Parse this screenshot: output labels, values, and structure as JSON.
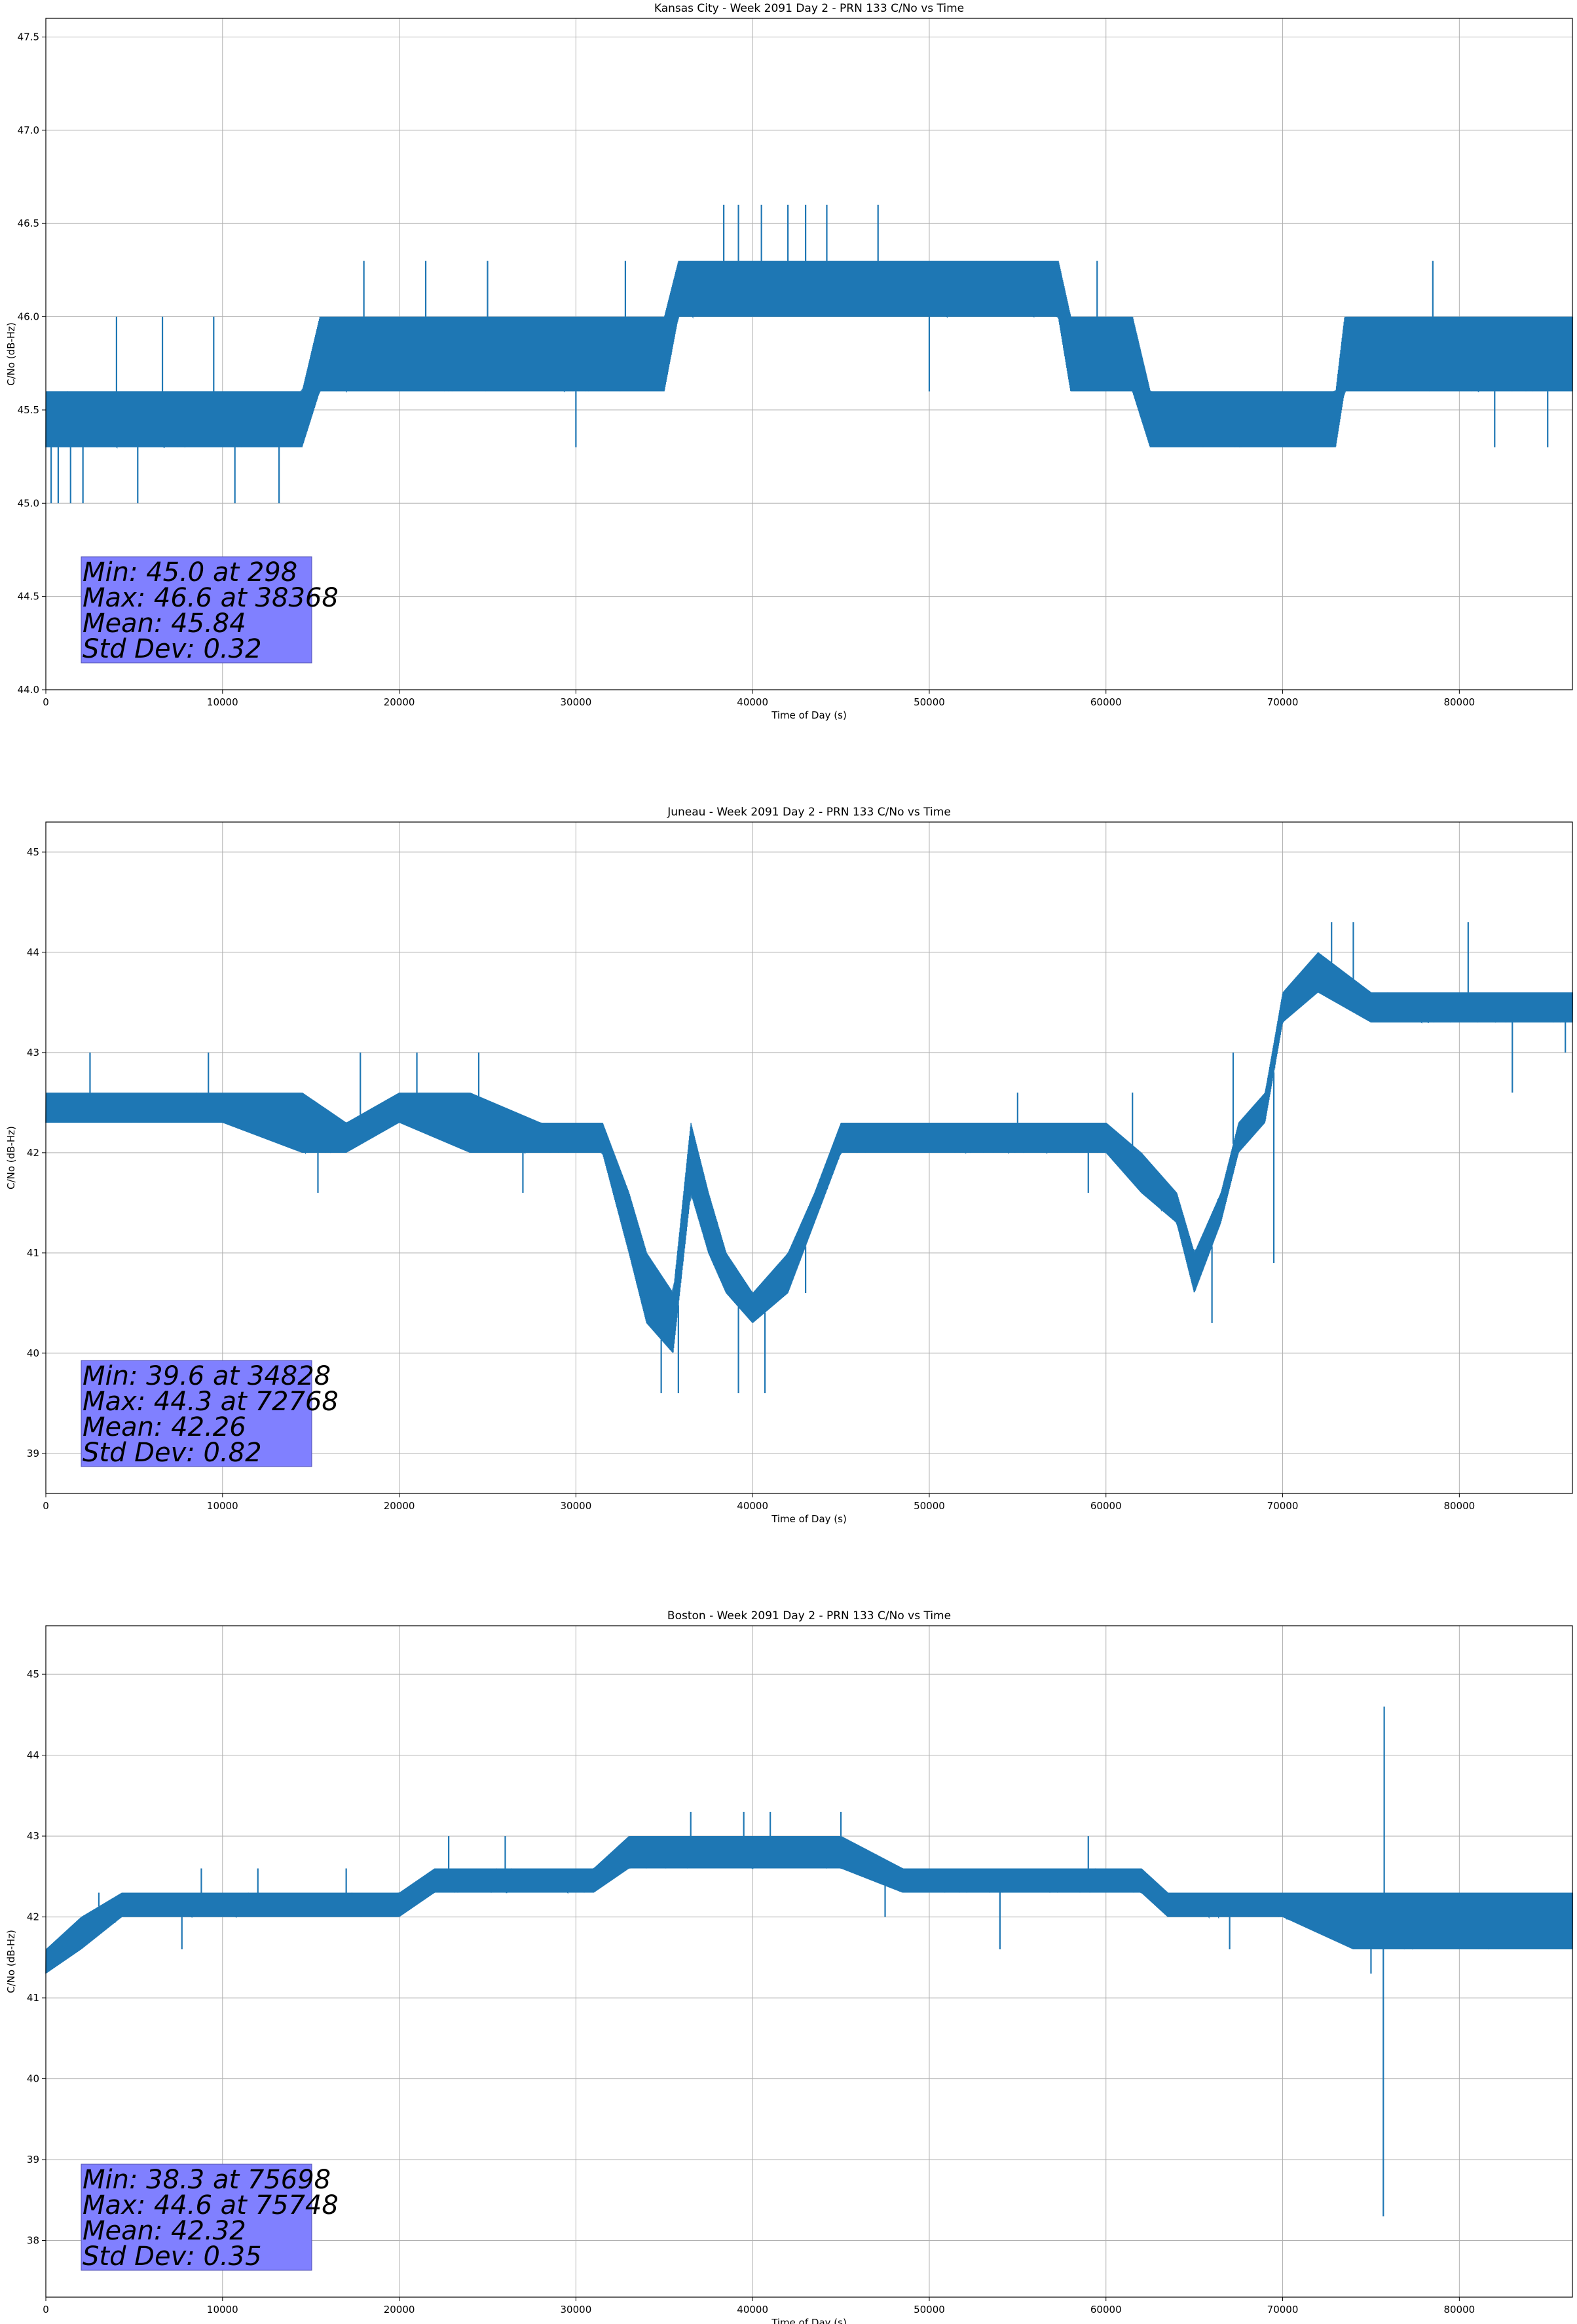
{
  "chart_data": [
    {
      "type": "line",
      "title": "Kansas City - Week 2091 Day 2 - PRN 133 C/No vs Time",
      "xlabel": "Time of Day (s)",
      "ylabel": "C/No (dB-Hz)",
      "xlim": [
        0,
        86400
      ],
      "ylim": [
        44.0,
        47.6
      ],
      "xticks": [
        0,
        10000,
        20000,
        30000,
        40000,
        50000,
        60000,
        70000,
        80000
      ],
      "yticks": [
        44.0,
        44.5,
        45.0,
        45.5,
        46.0,
        46.5,
        47.0,
        47.5
      ],
      "ytick_decimals": 1,
      "grid": true,
      "color": "#1f77b4",
      "stats": [
        "Min: 45.0 at 298",
        "Max: 46.6 at 38368",
        "Mean: 45.84",
        "Std Dev: 0.32"
      ],
      "band": [
        {
          "x": 0,
          "lo": 45.3,
          "hi": 45.6
        },
        {
          "x": 5000,
          "lo": 45.3,
          "hi": 45.6
        },
        {
          "x": 10000,
          "lo": 45.3,
          "hi": 45.6
        },
        {
          "x": 14500,
          "lo": 45.3,
          "hi": 45.6
        },
        {
          "x": 15500,
          "lo": 45.6,
          "hi": 46.0
        },
        {
          "x": 20000,
          "lo": 45.6,
          "hi": 46.0
        },
        {
          "x": 25000,
          "lo": 45.6,
          "hi": 46.0
        },
        {
          "x": 30000,
          "lo": 45.6,
          "hi": 46.0
        },
        {
          "x": 35000,
          "lo": 45.6,
          "hi": 46.0
        },
        {
          "x": 35800,
          "lo": 46.0,
          "hi": 46.3
        },
        {
          "x": 40000,
          "lo": 46.0,
          "hi": 46.3
        },
        {
          "x": 45000,
          "lo": 46.0,
          "hi": 46.3
        },
        {
          "x": 50000,
          "lo": 46.0,
          "hi": 46.3
        },
        {
          "x": 55000,
          "lo": 46.0,
          "hi": 46.3
        },
        {
          "x": 57300,
          "lo": 46.0,
          "hi": 46.3
        },
        {
          "x": 58000,
          "lo": 45.6,
          "hi": 46.0
        },
        {
          "x": 61500,
          "lo": 45.6,
          "hi": 46.0
        },
        {
          "x": 62500,
          "lo": 45.3,
          "hi": 45.6
        },
        {
          "x": 68000,
          "lo": 45.3,
          "hi": 45.6
        },
        {
          "x": 73000,
          "lo": 45.3,
          "hi": 45.6
        },
        {
          "x": 73500,
          "lo": 45.6,
          "hi": 46.0
        },
        {
          "x": 80000,
          "lo": 45.6,
          "hi": 46.0
        },
        {
          "x": 86400,
          "lo": 45.6,
          "hi": 46.0
        }
      ],
      "spikes": [
        {
          "x": 300,
          "y": 45.0
        },
        {
          "x": 700,
          "y": 45.0
        },
        {
          "x": 1400,
          "y": 45.0
        },
        {
          "x": 2100,
          "y": 45.0
        },
        {
          "x": 5200,
          "y": 45.0
        },
        {
          "x": 10700,
          "y": 45.0
        },
        {
          "x": 13200,
          "y": 45.0
        },
        {
          "x": 4000,
          "y": 46.0
        },
        {
          "x": 6600,
          "y": 46.0
        },
        {
          "x": 9500,
          "y": 46.0
        },
        {
          "x": 18000,
          "y": 46.3
        },
        {
          "x": 21500,
          "y": 46.3
        },
        {
          "x": 25000,
          "y": 46.3
        },
        {
          "x": 30000,
          "y": 45.3
        },
        {
          "x": 32800,
          "y": 46.3
        },
        {
          "x": 38368,
          "y": 46.6
        },
        {
          "x": 39200,
          "y": 46.6
        },
        {
          "x": 40500,
          "y": 46.6
        },
        {
          "x": 42000,
          "y": 46.6
        },
        {
          "x": 43000,
          "y": 46.6
        },
        {
          "x": 44200,
          "y": 46.6
        },
        {
          "x": 47100,
          "y": 46.6
        },
        {
          "x": 50000,
          "y": 45.6
        },
        {
          "x": 59500,
          "y": 46.3
        },
        {
          "x": 63000,
          "y": 45.3
        },
        {
          "x": 66000,
          "y": 45.3
        },
        {
          "x": 78500,
          "y": 46.3
        },
        {
          "x": 82000,
          "y": 45.3
        },
        {
          "x": 85000,
          "y": 45.3
        }
      ]
    },
    {
      "type": "line",
      "title": "Juneau - Week 2091 Day 2 - PRN 133 C/No vs Time",
      "xlabel": "Time of Day (s)",
      "ylabel": "C/No (dB-Hz)",
      "xlim": [
        0,
        86400
      ],
      "ylim": [
        38.6,
        45.3
      ],
      "xticks": [
        0,
        10000,
        20000,
        30000,
        40000,
        50000,
        60000,
        70000,
        80000
      ],
      "yticks": [
        39,
        40,
        41,
        42,
        43,
        44,
        45
      ],
      "ytick_decimals": 0,
      "grid": true,
      "color": "#1f77b4",
      "stats": [
        "Min: 39.6 at 34828",
        "Max: 44.3 at 72768",
        "Mean: 42.26",
        "Std Dev: 0.82"
      ],
      "band": [
        {
          "x": 0,
          "lo": 42.3,
          "hi": 42.6
        },
        {
          "x": 5000,
          "lo": 42.3,
          "hi": 42.6
        },
        {
          "x": 10000,
          "lo": 42.3,
          "hi": 42.6
        },
        {
          "x": 14500,
          "lo": 42.0,
          "hi": 42.6
        },
        {
          "x": 17000,
          "lo": 42.0,
          "hi": 42.3
        },
        {
          "x": 20000,
          "lo": 42.3,
          "hi": 42.6
        },
        {
          "x": 24000,
          "lo": 42.0,
          "hi": 42.6
        },
        {
          "x": 28000,
          "lo": 42.0,
          "hi": 42.3
        },
        {
          "x": 31500,
          "lo": 42.0,
          "hi": 42.3
        },
        {
          "x": 33000,
          "lo": 41.0,
          "hi": 41.6
        },
        {
          "x": 34000,
          "lo": 40.3,
          "hi": 41.0
        },
        {
          "x": 35500,
          "lo": 40.0,
          "hi": 40.6
        },
        {
          "x": 36500,
          "lo": 41.6,
          "hi": 42.3
        },
        {
          "x": 37500,
          "lo": 41.0,
          "hi": 41.6
        },
        {
          "x": 38500,
          "lo": 40.6,
          "hi": 41.0
        },
        {
          "x": 40000,
          "lo": 40.3,
          "hi": 40.6
        },
        {
          "x": 42000,
          "lo": 40.6,
          "hi": 41.0
        },
        {
          "x": 43500,
          "lo": 41.3,
          "hi": 41.6
        },
        {
          "x": 45000,
          "lo": 42.0,
          "hi": 42.3
        },
        {
          "x": 50000,
          "lo": 42.0,
          "hi": 42.3
        },
        {
          "x": 55000,
          "lo": 42.0,
          "hi": 42.3
        },
        {
          "x": 60000,
          "lo": 42.0,
          "hi": 42.3
        },
        {
          "x": 62000,
          "lo": 41.6,
          "hi": 42.0
        },
        {
          "x": 64000,
          "lo": 41.3,
          "hi": 41.6
        },
        {
          "x": 65000,
          "lo": 40.6,
          "hi": 41.0
        },
        {
          "x": 66500,
          "lo": 41.3,
          "hi": 41.6
        },
        {
          "x": 67500,
          "lo": 42.0,
          "hi": 42.3
        },
        {
          "x": 69000,
          "lo": 42.3,
          "hi": 42.6
        },
        {
          "x": 70000,
          "lo": 43.3,
          "hi": 43.6
        },
        {
          "x": 72000,
          "lo": 43.6,
          "hi": 44.0
        },
        {
          "x": 75000,
          "lo": 43.3,
          "hi": 43.6
        },
        {
          "x": 80000,
          "lo": 43.3,
          "hi": 43.6
        },
        {
          "x": 86400,
          "lo": 43.3,
          "hi": 43.6
        }
      ],
      "spikes": [
        {
          "x": 2500,
          "y": 43.0
        },
        {
          "x": 9200,
          "y": 43.0
        },
        {
          "x": 15400,
          "y": 41.6
        },
        {
          "x": 17800,
          "y": 43.0
        },
        {
          "x": 21000,
          "y": 43.0
        },
        {
          "x": 24500,
          "y": 43.0
        },
        {
          "x": 27000,
          "y": 41.6
        },
        {
          "x": 34828,
          "y": 39.6
        },
        {
          "x": 35800,
          "y": 39.6
        },
        {
          "x": 39200,
          "y": 39.6
        },
        {
          "x": 40700,
          "y": 39.6
        },
        {
          "x": 43000,
          "y": 40.6
        },
        {
          "x": 55000,
          "y": 42.6
        },
        {
          "x": 59000,
          "y": 41.6
        },
        {
          "x": 61500,
          "y": 42.6
        },
        {
          "x": 66000,
          "y": 40.3
        },
        {
          "x": 67200,
          "y": 43.0
        },
        {
          "x": 69500,
          "y": 40.9
        },
        {
          "x": 72768,
          "y": 44.3
        },
        {
          "x": 74000,
          "y": 44.3
        },
        {
          "x": 80500,
          "y": 44.3
        },
        {
          "x": 83000,
          "y": 42.6
        },
        {
          "x": 86000,
          "y": 43.0
        }
      ]
    },
    {
      "type": "line",
      "title": "Boston - Week 2091 Day 2 - PRN 133 C/No vs Time",
      "xlabel": "Time of Day (s)",
      "ylabel": "C/No (dB-Hz)",
      "xlim": [
        0,
        86400
      ],
      "ylim": [
        37.3,
        45.6
      ],
      "xticks": [
        0,
        10000,
        20000,
        30000,
        40000,
        50000,
        60000,
        70000,
        80000
      ],
      "yticks": [
        38,
        39,
        40,
        41,
        42,
        43,
        44,
        45
      ],
      "ytick_decimals": 0,
      "grid": true,
      "color": "#1f77b4",
      "stats": [
        "Min: 38.3 at 75698",
        "Max: 44.6 at 75748",
        "Mean: 42.32",
        "Std Dev: 0.35"
      ],
      "band": [
        {
          "x": 0,
          "lo": 41.3,
          "hi": 41.6
        },
        {
          "x": 2000,
          "lo": 41.6,
          "hi": 42.0
        },
        {
          "x": 4300,
          "lo": 42.0,
          "hi": 42.3
        },
        {
          "x": 10000,
          "lo": 42.0,
          "hi": 42.3
        },
        {
          "x": 15000,
          "lo": 42.0,
          "hi": 42.3
        },
        {
          "x": 20000,
          "lo": 42.0,
          "hi": 42.3
        },
        {
          "x": 22000,
          "lo": 42.3,
          "hi": 42.6
        },
        {
          "x": 26000,
          "lo": 42.3,
          "hi": 42.6
        },
        {
          "x": 31000,
          "lo": 42.3,
          "hi": 42.6
        },
        {
          "x": 33000,
          "lo": 42.6,
          "hi": 43.0
        },
        {
          "x": 40000,
          "lo": 42.6,
          "hi": 43.0
        },
        {
          "x": 45000,
          "lo": 42.6,
          "hi": 43.0
        },
        {
          "x": 48500,
          "lo": 42.3,
          "hi": 42.6
        },
        {
          "x": 55000,
          "lo": 42.3,
          "hi": 42.6
        },
        {
          "x": 62000,
          "lo": 42.3,
          "hi": 42.6
        },
        {
          "x": 63500,
          "lo": 42.0,
          "hi": 42.3
        },
        {
          "x": 70000,
          "lo": 42.0,
          "hi": 42.3
        },
        {
          "x": 74000,
          "lo": 41.6,
          "hi": 42.3
        },
        {
          "x": 80000,
          "lo": 41.6,
          "hi": 42.3
        },
        {
          "x": 86400,
          "lo": 41.6,
          "hi": 42.3
        }
      ],
      "spikes": [
        {
          "x": 3000,
          "y": 42.3
        },
        {
          "x": 7700,
          "y": 41.6
        },
        {
          "x": 8800,
          "y": 42.6
        },
        {
          "x": 12000,
          "y": 42.6
        },
        {
          "x": 17000,
          "y": 42.6
        },
        {
          "x": 22800,
          "y": 43.0
        },
        {
          "x": 26000,
          "y": 43.0
        },
        {
          "x": 36500,
          "y": 43.3
        },
        {
          "x": 39500,
          "y": 43.3
        },
        {
          "x": 41000,
          "y": 43.3
        },
        {
          "x": 45000,
          "y": 43.3
        },
        {
          "x": 47500,
          "y": 42.0
        },
        {
          "x": 54000,
          "y": 41.6
        },
        {
          "x": 59000,
          "y": 43.0
        },
        {
          "x": 67000,
          "y": 41.6
        },
        {
          "x": 75000,
          "y": 41.3
        },
        {
          "x": 75698,
          "y": 38.3
        },
        {
          "x": 75748,
          "y": 44.6
        },
        {
          "x": 82000,
          "y": 41.6
        }
      ]
    }
  ]
}
